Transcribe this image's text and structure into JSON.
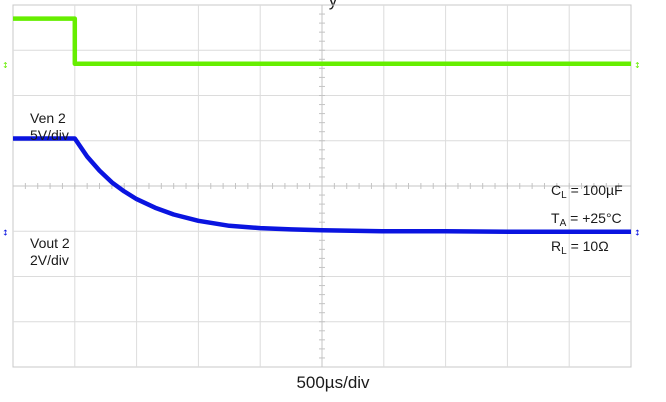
{
  "chart_data": {
    "type": "line",
    "title": "",
    "xlabel": "500µs/div",
    "ylabel": "",
    "time_per_div_us": 500,
    "grid": true,
    "x_divisions": 10,
    "y_divisions": 8,
    "series": [
      {
        "name": "Ven 2",
        "scale": "5V/div",
        "color": "#66ee00",
        "x_div": [
          0,
          1.0,
          1.0,
          10.0
        ],
        "y_div_from_top": [
          0.3,
          0.3,
          1.3,
          1.3
        ]
      },
      {
        "name": "Vout 2",
        "scale": "2V/div",
        "color": "#0a14e0",
        "x_div": [
          0,
          1.0,
          1.2,
          1.4,
          1.6,
          1.8,
          2.0,
          2.3,
          2.6,
          3.0,
          3.5,
          4.0,
          4.5,
          5.0,
          6.0,
          7.0,
          8.0,
          9.0,
          10.0
        ],
        "y_div_from_top": [
          2.95,
          2.95,
          3.35,
          3.66,
          3.92,
          4.12,
          4.29,
          4.48,
          4.63,
          4.77,
          4.88,
          4.93,
          4.96,
          4.98,
          5.0,
          5.0,
          5.01,
          5.01,
          5.01
        ]
      }
    ],
    "channel_labels": [
      {
        "line1": "Ven 2",
        "line2": "5V/div"
      },
      {
        "line1": "Vout 2",
        "line2": "2V/div"
      }
    ],
    "annotations": [
      {
        "main": "C",
        "sub": "L",
        "rest": " = 100µF"
      },
      {
        "main": "T",
        "sub": "A",
        "rest": " = +25°C"
      },
      {
        "main": "R",
        "sub": "L",
        "rest": " = 10Ω"
      }
    ],
    "top_text": "y"
  }
}
